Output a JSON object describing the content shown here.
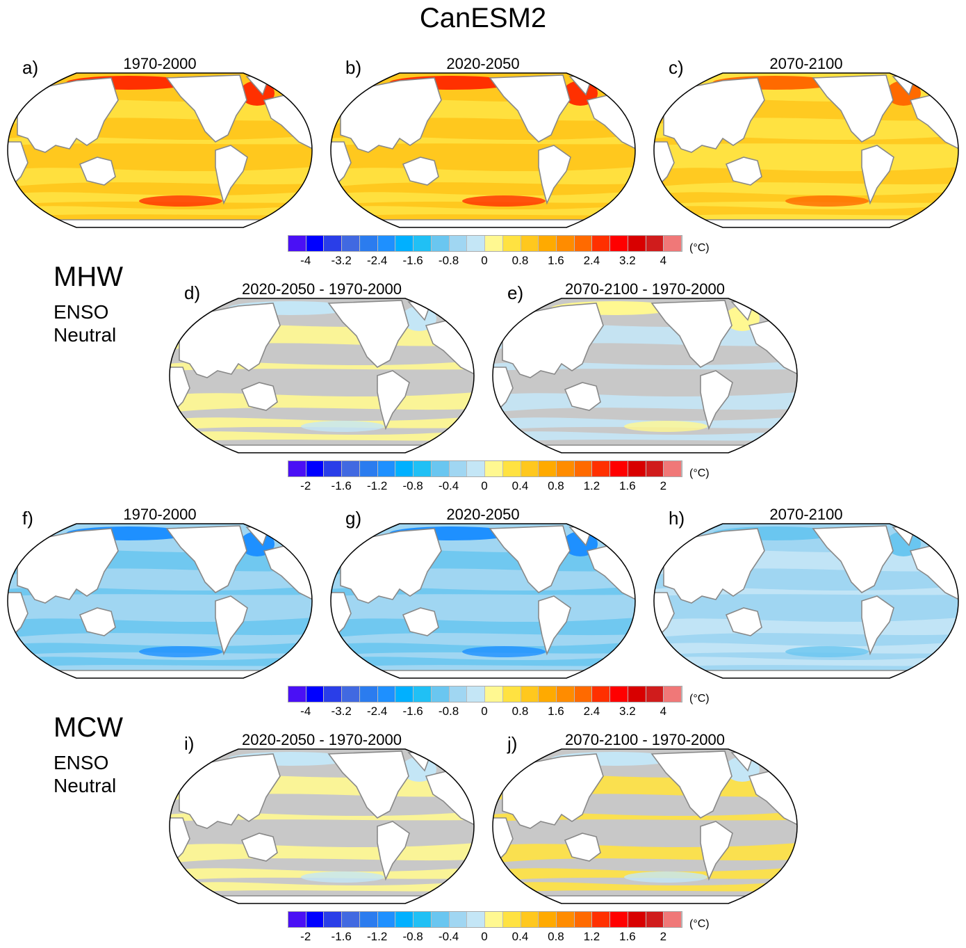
{
  "title": "CanESM2",
  "colors": [
    "#4a10f5",
    "#0000ff",
    "#2a3ee8",
    "#4169e1",
    "#2b7cef",
    "#1e90ff",
    "#00b0ff",
    "#20c0f5",
    "#6ac6f0",
    "#a0d6f2",
    "#c4e6f6",
    "#fff891",
    "#ffe241",
    "#ffc81e",
    "#ffaa00",
    "#ff8c00",
    "#ff6a00",
    "#ff3000",
    "#ff0000",
    "#d80000",
    "#d01c1c",
    "#f07878"
  ],
  "colorbars": [
    {
      "ticks": [
        "-4",
        "-3.2",
        "-2.4",
        "-1.6",
        "-0.8",
        "0",
        "0.8",
        "1.6",
        "2.4",
        "3.2",
        "4"
      ],
      "unit": "(°C)"
    },
    {
      "ticks": [
        "-2",
        "-1.6",
        "-1.2",
        "-0.8",
        "-0.4",
        "0",
        "0.4",
        "0.8",
        "1.2",
        "1.6",
        "2"
      ],
      "unit": "(°C)"
    },
    {
      "ticks": [
        "-4",
        "-3.2",
        "-2.4",
        "-1.6",
        "-0.8",
        "0",
        "0.8",
        "1.6",
        "2.4",
        "3.2",
        "4"
      ],
      "unit": "(°C)"
    },
    {
      "ticks": [
        "-2",
        "-1.6",
        "-1.2",
        "-0.8",
        "-0.4",
        "0",
        "0.4",
        "0.8",
        "1.2",
        "1.6",
        "2"
      ],
      "unit": "(°C)"
    }
  ],
  "sections": [
    {
      "name": "MHW",
      "line1": "ENSO",
      "line2": "Neutral"
    },
    {
      "name": "MCW",
      "line1": "ENSO",
      "line2": "Neutral"
    }
  ],
  "panels": [
    {
      "label": "a)",
      "title": "1970-2000",
      "base": "#ffc81e",
      "band": "#ffe241",
      "accent": "#ff3000"
    },
    {
      "label": "b)",
      "title": "2020-2050",
      "base": "#ffc81e",
      "band": "#ffe241",
      "accent": "#ff3000"
    },
    {
      "label": "c)",
      "title": "2070-2100",
      "base": "#ffe241",
      "band": "#ffc81e",
      "accent": "#ff6a00"
    },
    {
      "label": "d)",
      "title": "2020-2050 - 1970-2000",
      "base": "#c8c8c8",
      "band": "#fff891",
      "accent": "#c4e6f6"
    },
    {
      "label": "e)",
      "title": "2070-2100 - 1970-2000",
      "base": "#c8c8c8",
      "band": "#c4e6f6",
      "accent": "#fff891"
    },
    {
      "label": "f)",
      "title": "1970-2000",
      "base": "#a0d6f2",
      "band": "#6ac6f0",
      "accent": "#1e90ff"
    },
    {
      "label": "g)",
      "title": "2020-2050",
      "base": "#a0d6f2",
      "band": "#6ac6f0",
      "accent": "#1e90ff"
    },
    {
      "label": "h)",
      "title": "2070-2100",
      "base": "#a0d6f2",
      "band": "#c4e6f6",
      "accent": "#6ac6f0"
    },
    {
      "label": "i)",
      "title": "2020-2050 - 1970-2000",
      "base": "#c8c8c8",
      "band": "#fff891",
      "accent": "#c4e6f6"
    },
    {
      "label": "j)",
      "title": "2070-2100 - 1970-2000",
      "base": "#c8c8c8",
      "band": "#ffe241",
      "accent": "#c4e6f6"
    }
  ]
}
